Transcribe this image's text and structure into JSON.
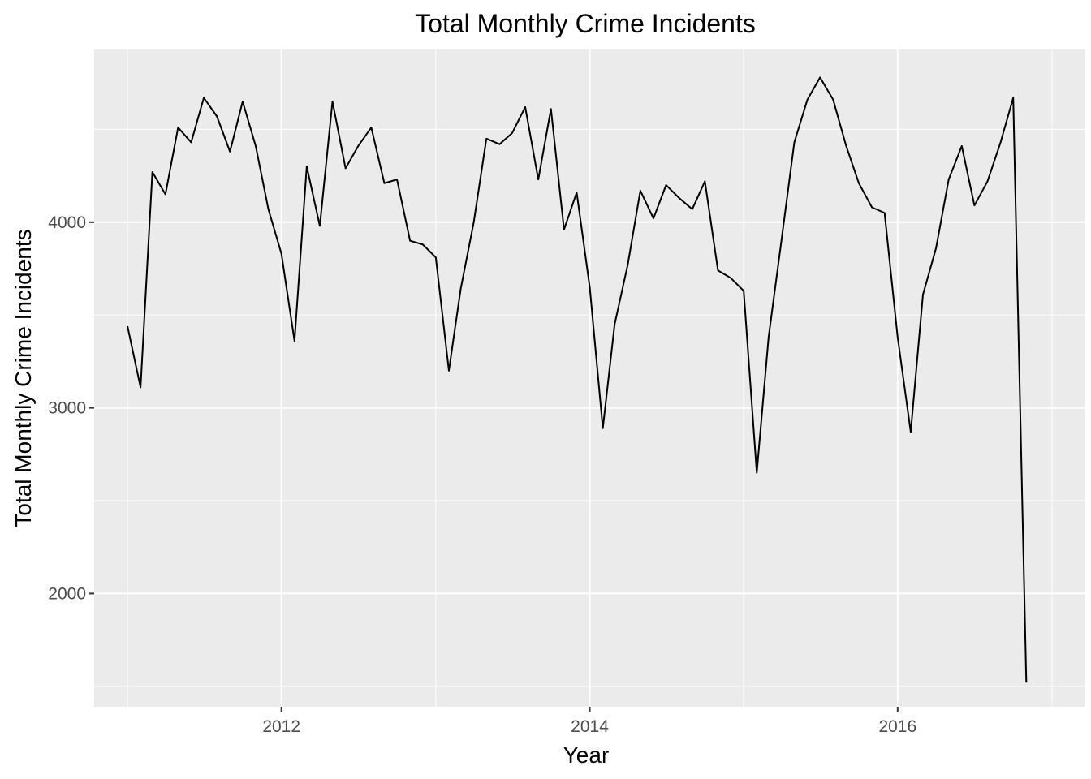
{
  "chart_data": {
    "type": "line",
    "title": "Total Monthly Crime Incidents",
    "xlabel": "Year",
    "ylabel": "Total Monthly Crime Incidents",
    "x_type": "date",
    "xlim": [
      "2010-10-14",
      "2017-03-19"
    ],
    "ylim": [
      1390,
      4930
    ],
    "x_ticks": [
      {
        "label": "2012",
        "value": "2012-01-01"
      },
      {
        "label": "2014",
        "value": "2014-01-01"
      },
      {
        "label": "2016",
        "value": "2016-01-01"
      }
    ],
    "x_minor": [
      "2011-01-01",
      "2013-01-01",
      "2015-01-01",
      "2017-01-01"
    ],
    "y_ticks": [
      2000,
      3000,
      4000
    ],
    "y_minor": [
      1500,
      2500,
      3500,
      4500
    ],
    "grid": true,
    "line_color": "#000000",
    "series": [
      {
        "x": [
          "2011-01-01",
          "2011-02-01",
          "2011-03-01",
          "2011-04-01",
          "2011-05-01",
          "2011-06-01",
          "2011-07-01",
          "2011-08-01",
          "2011-09-01",
          "2011-10-01",
          "2011-11-01",
          "2011-12-01",
          "2012-01-01",
          "2012-02-01",
          "2012-03-01",
          "2012-04-01",
          "2012-05-01",
          "2012-06-01",
          "2012-07-01",
          "2012-08-01",
          "2012-09-01",
          "2012-10-01",
          "2012-11-01",
          "2012-12-01",
          "2013-01-01",
          "2013-02-01",
          "2013-03-01",
          "2013-04-01",
          "2013-05-01",
          "2013-06-01",
          "2013-07-01",
          "2013-08-01",
          "2013-09-01",
          "2013-10-01",
          "2013-11-01",
          "2013-12-01",
          "2014-01-01",
          "2014-02-01",
          "2014-03-01",
          "2014-04-01",
          "2014-05-01",
          "2014-06-01",
          "2014-07-01",
          "2014-08-01",
          "2014-09-01",
          "2014-10-01",
          "2014-11-01",
          "2014-12-01",
          "2015-01-01",
          "2015-02-01",
          "2015-03-01",
          "2015-04-01",
          "2015-05-01",
          "2015-06-01",
          "2015-07-01",
          "2015-08-01",
          "2015-09-01",
          "2015-10-01",
          "2015-11-01",
          "2015-12-01",
          "2016-01-01",
          "2016-02-01",
          "2016-03-01",
          "2016-04-01",
          "2016-05-01",
          "2016-06-01",
          "2016-07-01",
          "2016-08-01",
          "2016-09-01",
          "2016-10-01",
          "2016-11-01",
          "2016-12-01"
        ],
        "y": [
          3440,
          3110,
          4270,
          4150,
          4510,
          4430,
          4670,
          4570,
          4380,
          4650,
          4410,
          4070,
          3830,
          3360,
          4300,
          3980,
          4650,
          4290,
          4410,
          4510,
          4210,
          4230,
          3900,
          3880,
          3810,
          3200,
          3640,
          4000,
          4450,
          4420,
          4480,
          4620,
          4230,
          4610,
          3960,
          4160,
          3650,
          2890,
          3450,
          3770,
          4170,
          4020,
          4200,
          4130,
          4070,
          4220,
          3740,
          3700,
          3630,
          2650,
          3380,
          3910,
          4430,
          4660,
          4780,
          4660,
          4410,
          4210,
          4080,
          4050,
          3380,
          2870,
          3610,
          3860,
          4230,
          4410,
          4090,
          4220,
          4430,
          4670,
          1520,
          null
        ]
      }
    ]
  }
}
